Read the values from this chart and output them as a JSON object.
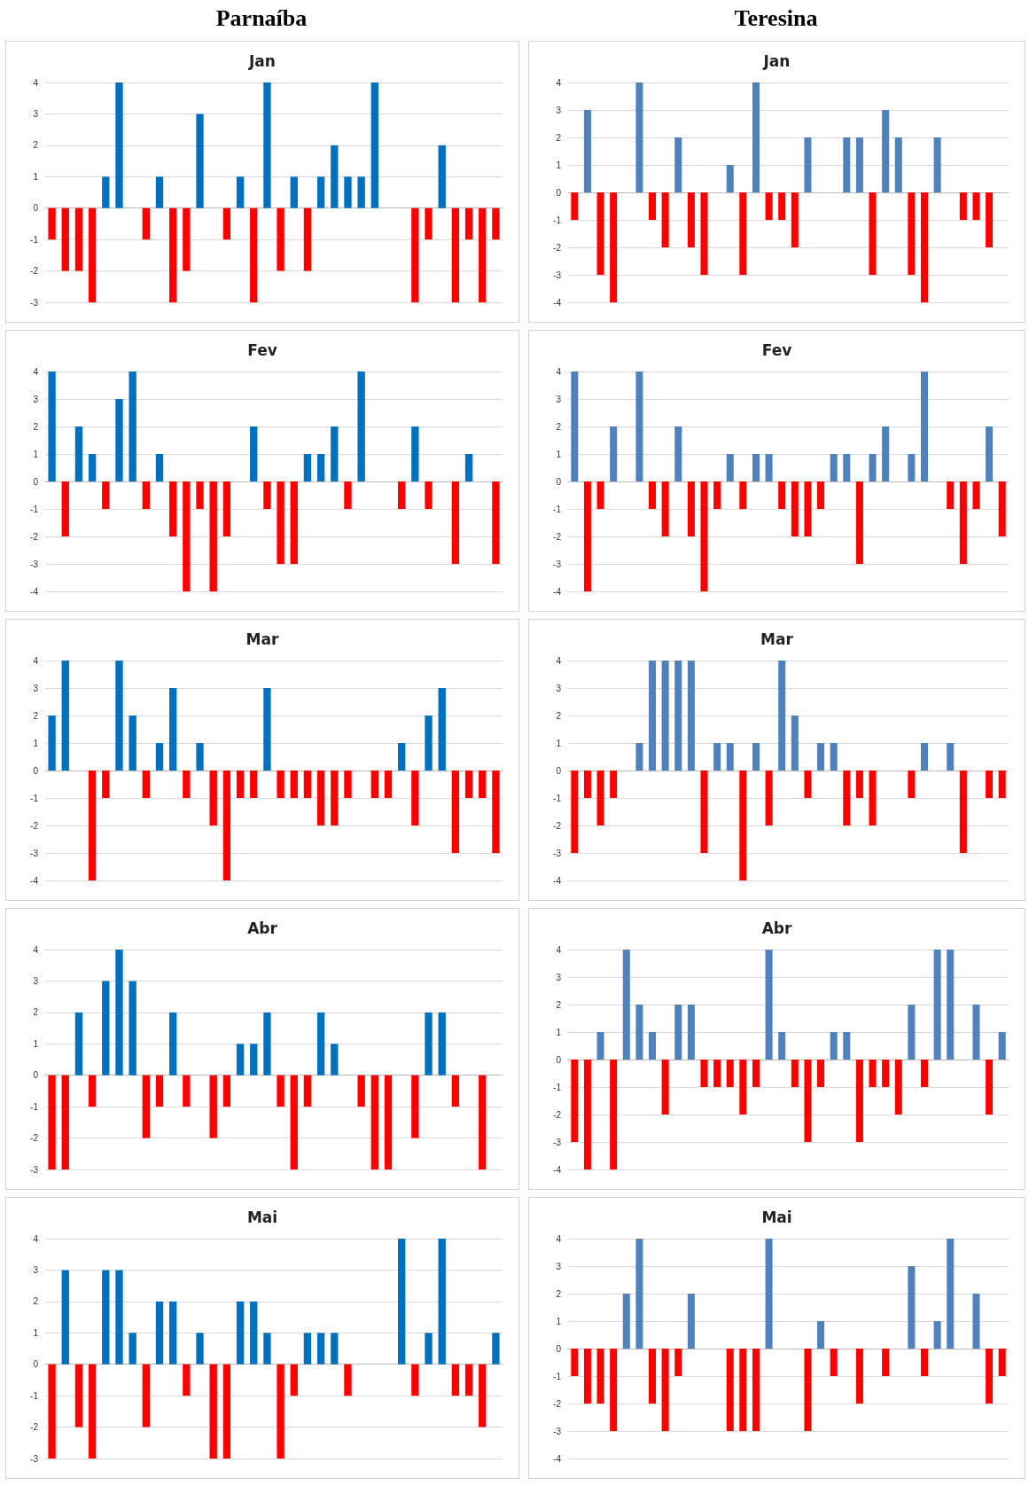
{
  "chart_data": [
    {
      "type": "bar",
      "subtitle": "Parnaíba",
      "title": "Jan",
      "stacked": true,
      "grid": "y",
      "tick_labels": "y",
      "categories": [
        null,
        null,
        null,
        null,
        null,
        null,
        null,
        null,
        null,
        null,
        null,
        null,
        null,
        null,
        null,
        null,
        null,
        null,
        null,
        null,
        null,
        null,
        null,
        null,
        null,
        null,
        null,
        null,
        null,
        null,
        null,
        null,
        null,
        null
      ],
      "ylim": [
        -3,
        4
      ],
      "yticks": [
        -3,
        -2,
        -1,
        0,
        1,
        2,
        3,
        4
      ],
      "series": [
        {
          "color": "#0070c0",
          "values": [
            null,
            null,
            null,
            null,
            1,
            4,
            null,
            null,
            1,
            null,
            null,
            3,
            null,
            null,
            1,
            null,
            4,
            null,
            1,
            null,
            1,
            2,
            1,
            1,
            4,
            null,
            null,
            null,
            null,
            2,
            null,
            null,
            null,
            null
          ]
        },
        {
          "color": "#ff0000",
          "values": [
            -1,
            -2,
            -2,
            -3,
            null,
            null,
            null,
            -1,
            null,
            -3,
            -2,
            null,
            null,
            -1,
            null,
            -3,
            null,
            -2,
            null,
            -2,
            null,
            null,
            null,
            null,
            null,
            null,
            null,
            -3,
            -1,
            null,
            -3,
            -1,
            -3,
            -1
          ]
        }
      ]
    },
    {
      "type": "bar",
      "subtitle": "Teresina",
      "title": "Jan",
      "stacked": true,
      "grid": "y",
      "tick_labels": "y",
      "categories": [
        null,
        null,
        null,
        null,
        null,
        null,
        null,
        null,
        null,
        null,
        null,
        null,
        null,
        null,
        null,
        null,
        null,
        null,
        null,
        null,
        null,
        null,
        null,
        null,
        null,
        null,
        null,
        null,
        null,
        null,
        null,
        null,
        null,
        null
      ],
      "ylim": [
        -4,
        4
      ],
      "yticks": [
        -4,
        -3,
        -2,
        -1,
        0,
        1,
        2,
        3,
        4
      ],
      "series": [
        {
          "color": "#4f81bd",
          "values": [
            null,
            3,
            null,
            null,
            null,
            4,
            null,
            null,
            2,
            null,
            null,
            null,
            1,
            null,
            4,
            null,
            null,
            null,
            2,
            null,
            null,
            2,
            2,
            null,
            3,
            2,
            null,
            null,
            2,
            null,
            null,
            null,
            null,
            null
          ]
        },
        {
          "color": "#ff0000",
          "values": [
            -1,
            null,
            -3,
            -4,
            null,
            null,
            -1,
            -2,
            null,
            -2,
            -3,
            null,
            null,
            -3,
            null,
            -1,
            -1,
            -2,
            null,
            null,
            null,
            null,
            null,
            -3,
            null,
            null,
            -3,
            -4,
            null,
            null,
            -1,
            -1,
            -2,
            null
          ]
        }
      ]
    },
    {
      "type": "bar",
      "title": "Fev",
      "stacked": true,
      "grid": "y",
      "tick_labels": "y",
      "categories": [
        null,
        null,
        null,
        null,
        null,
        null,
        null,
        null,
        null,
        null,
        null,
        null,
        null,
        null,
        null,
        null,
        null,
        null,
        null,
        null,
        null,
        null,
        null,
        null,
        null,
        null,
        null,
        null,
        null,
        null,
        null,
        null,
        null,
        null
      ],
      "ylim": [
        -4,
        4
      ],
      "yticks": [
        -4,
        -3,
        -2,
        -1,
        0,
        1,
        2,
        3,
        4
      ],
      "series": [
        {
          "color": "#0070c0",
          "values": [
            4,
            null,
            2,
            1,
            null,
            3,
            4,
            null,
            1,
            null,
            null,
            null,
            null,
            null,
            null,
            2,
            null,
            null,
            null,
            1,
            1,
            2,
            null,
            4,
            null,
            null,
            null,
            2,
            null,
            null,
            null,
            1,
            null,
            null
          ]
        },
        {
          "color": "#ff0000",
          "values": [
            null,
            -2,
            null,
            null,
            -1,
            null,
            null,
            -1,
            null,
            -2,
            -4,
            -1,
            -4,
            -2,
            null,
            null,
            -1,
            -3,
            -3,
            null,
            null,
            null,
            -1,
            null,
            null,
            null,
            -1,
            null,
            -1,
            null,
            -3,
            null,
            null,
            -3
          ]
        }
      ]
    },
    {
      "type": "bar",
      "title": "Fev",
      "stacked": true,
      "grid": "y",
      "tick_labels": "y",
      "categories": [
        null,
        null,
        null,
        null,
        null,
        null,
        null,
        null,
        null,
        null,
        null,
        null,
        null,
        null,
        null,
        null,
        null,
        null,
        null,
        null,
        null,
        null,
        null,
        null,
        null,
        null,
        null,
        null,
        null,
        null,
        null,
        null,
        null,
        null
      ],
      "ylim": [
        -4,
        4
      ],
      "yticks": [
        -4,
        -3,
        -2,
        -1,
        0,
        1,
        2,
        3,
        4
      ],
      "series": [
        {
          "color": "#4f81bd",
          "values": [
            4,
            null,
            null,
            2,
            null,
            4,
            null,
            null,
            2,
            null,
            null,
            null,
            1,
            null,
            1,
            1,
            null,
            null,
            null,
            null,
            1,
            1,
            null,
            1,
            2,
            null,
            1,
            4,
            null,
            null,
            null,
            null,
            2,
            null
          ]
        },
        {
          "color": "#ff0000",
          "values": [
            null,
            -4,
            -1,
            null,
            null,
            null,
            -1,
            -2,
            null,
            -2,
            -4,
            -1,
            null,
            -1,
            null,
            null,
            -1,
            -2,
            -2,
            -1,
            null,
            null,
            -3,
            null,
            null,
            null,
            null,
            null,
            null,
            -1,
            -3,
            -1,
            null,
            -2
          ]
        }
      ]
    },
    {
      "type": "bar",
      "title": "Mar",
      "stacked": true,
      "grid": "y",
      "tick_labels": "y",
      "categories": [
        null,
        null,
        null,
        null,
        null,
        null,
        null,
        null,
        null,
        null,
        null,
        null,
        null,
        null,
        null,
        null,
        null,
        null,
        null,
        null,
        null,
        null,
        null,
        null,
        null,
        null,
        null,
        null,
        null,
        null,
        null,
        null,
        null,
        null
      ],
      "ylim": [
        -4,
        4
      ],
      "yticks": [
        -4,
        -3,
        -2,
        -1,
        0,
        1,
        2,
        3,
        4
      ],
      "series": [
        {
          "color": "#0070c0",
          "values": [
            2,
            4,
            null,
            null,
            null,
            4,
            2,
            null,
            1,
            3,
            null,
            1,
            null,
            null,
            null,
            null,
            3,
            null,
            null,
            null,
            null,
            null,
            null,
            null,
            null,
            null,
            1,
            null,
            2,
            3,
            null,
            null,
            null,
            null
          ]
        },
        {
          "color": "#ff0000",
          "values": [
            null,
            null,
            null,
            -4,
            -1,
            null,
            null,
            -1,
            null,
            null,
            -1,
            null,
            -2,
            -4,
            -1,
            -1,
            null,
            -1,
            -1,
            -1,
            -2,
            -2,
            -1,
            null,
            -1,
            -1,
            null,
            -2,
            null,
            null,
            -3,
            -1,
            -1,
            -3
          ]
        }
      ]
    },
    {
      "type": "bar",
      "title": "Mar",
      "stacked": true,
      "grid": "y",
      "tick_labels": "y",
      "categories": [
        null,
        null,
        null,
        null,
        null,
        null,
        null,
        null,
        null,
        null,
        null,
        null,
        null,
        null,
        null,
        null,
        null,
        null,
        null,
        null,
        null,
        null,
        null,
        null,
        null,
        null,
        null,
        null,
        null,
        null,
        null,
        null,
        null,
        null
      ],
      "ylim": [
        -4,
        4
      ],
      "yticks": [
        -4,
        -3,
        -2,
        -1,
        0,
        1,
        2,
        3,
        4
      ],
      "series": [
        {
          "color": "#4f81bd",
          "values": [
            null,
            null,
            null,
            null,
            null,
            1,
            4,
            4,
            4,
            4,
            null,
            1,
            1,
            null,
            1,
            null,
            4,
            2,
            null,
            1,
            1,
            null,
            null,
            null,
            null,
            null,
            null,
            1,
            null,
            1,
            null,
            null,
            null,
            null
          ]
        },
        {
          "color": "#ff0000",
          "values": [
            -3,
            -1,
            -2,
            -1,
            null,
            null,
            null,
            null,
            null,
            null,
            -3,
            null,
            null,
            -4,
            null,
            -2,
            null,
            null,
            -1,
            null,
            null,
            -2,
            -1,
            -2,
            null,
            null,
            -1,
            null,
            null,
            null,
            -3,
            null,
            -1,
            -1
          ]
        }
      ]
    },
    {
      "type": "bar",
      "title": "Abr",
      "stacked": true,
      "grid": "y",
      "tick_labels": "y",
      "categories": [
        null,
        null,
        null,
        null,
        null,
        null,
        null,
        null,
        null,
        null,
        null,
        null,
        null,
        null,
        null,
        null,
        null,
        null,
        null,
        null,
        null,
        null,
        null,
        null,
        null,
        null,
        null,
        null,
        null,
        null,
        null,
        null,
        null,
        null
      ],
      "ylim": [
        -3,
        4
      ],
      "yticks": [
        -3,
        -2,
        -1,
        0,
        1,
        2,
        3,
        4
      ],
      "series": [
        {
          "color": "#0070c0",
          "values": [
            null,
            null,
            2,
            null,
            3,
            4,
            3,
            null,
            null,
            2,
            null,
            null,
            null,
            null,
            1,
            1,
            2,
            null,
            null,
            null,
            2,
            1,
            null,
            null,
            null,
            null,
            null,
            null,
            2,
            2,
            null,
            null,
            null,
            null
          ]
        },
        {
          "color": "#ff0000",
          "values": [
            -3,
            -3,
            null,
            -1,
            null,
            null,
            null,
            -2,
            -1,
            null,
            -1,
            null,
            -2,
            -1,
            null,
            null,
            null,
            -1,
            -3,
            -1,
            null,
            null,
            null,
            -1,
            -3,
            -3,
            null,
            -2,
            null,
            null,
            -1,
            null,
            -3,
            null
          ]
        }
      ]
    },
    {
      "type": "bar",
      "title": "Abr",
      "stacked": true,
      "grid": "y",
      "tick_labels": "y",
      "categories": [
        null,
        null,
        null,
        null,
        null,
        null,
        null,
        null,
        null,
        null,
        null,
        null,
        null,
        null,
        null,
        null,
        null,
        null,
        null,
        null,
        null,
        null,
        null,
        null,
        null,
        null,
        null,
        null,
        null,
        null,
        null,
        null,
        null,
        null
      ],
      "ylim": [
        -4,
        4
      ],
      "yticks": [
        -4,
        -3,
        -2,
        -1,
        0,
        1,
        2,
        3,
        4
      ],
      "series": [
        {
          "color": "#4f81bd",
          "values": [
            null,
            null,
            1,
            null,
            4,
            2,
            1,
            null,
            2,
            2,
            null,
            null,
            null,
            null,
            null,
            4,
            1,
            null,
            null,
            null,
            1,
            1,
            null,
            null,
            null,
            null,
            2,
            null,
            4,
            4,
            null,
            2,
            null,
            1
          ]
        },
        {
          "color": "#ff0000",
          "values": [
            -3,
            -4,
            null,
            -4,
            null,
            null,
            null,
            -2,
            null,
            null,
            -1,
            -1,
            -1,
            -2,
            -1,
            null,
            null,
            -1,
            -3,
            -1,
            null,
            null,
            -3,
            -1,
            -1,
            -2,
            null,
            -1,
            null,
            null,
            null,
            null,
            -2,
            null
          ]
        }
      ]
    },
    {
      "type": "bar",
      "title": "Mai",
      "stacked": true,
      "grid": "y",
      "tick_labels": "y",
      "categories": [
        null,
        null,
        null,
        null,
        null,
        null,
        null,
        null,
        null,
        null,
        null,
        null,
        null,
        null,
        null,
        null,
        null,
        null,
        null,
        null,
        null,
        null,
        null,
        null,
        null,
        null,
        null,
        null,
        null,
        null,
        null,
        null,
        null,
        null
      ],
      "ylim": [
        -3,
        4
      ],
      "yticks": [
        -3,
        -2,
        -1,
        0,
        1,
        2,
        3,
        4
      ],
      "series": [
        {
          "color": "#0070c0",
          "values": [
            null,
            3,
            null,
            null,
            3,
            3,
            1,
            null,
            2,
            2,
            null,
            1,
            null,
            null,
            2,
            2,
            1,
            null,
            null,
            1,
            1,
            1,
            null,
            null,
            null,
            null,
            4,
            null,
            1,
            4,
            null,
            null,
            null,
            1
          ]
        },
        {
          "color": "#ff0000",
          "values": [
            -3,
            null,
            -2,
            -3,
            null,
            null,
            null,
            -2,
            null,
            null,
            -1,
            null,
            -3,
            -3,
            null,
            null,
            null,
            -3,
            -1,
            null,
            null,
            null,
            -1,
            null,
            null,
            null,
            null,
            -1,
            null,
            null,
            -1,
            -1,
            -2,
            null
          ]
        }
      ]
    },
    {
      "type": "bar",
      "title": "Mai",
      "stacked": true,
      "grid": "y",
      "tick_labels": "y",
      "categories": [
        null,
        null,
        null,
        null,
        null,
        null,
        null,
        null,
        null,
        null,
        null,
        null,
        null,
        null,
        null,
        null,
        null,
        null,
        null,
        null,
        null,
        null,
        null,
        null,
        null,
        null,
        null,
        null,
        null,
        null,
        null,
        null,
        null,
        null
      ],
      "ylim": [
        -4,
        4
      ],
      "yticks": [
        -4,
        -3,
        -2,
        -1,
        0,
        1,
        2,
        3,
        4
      ],
      "series": [
        {
          "color": "#4f81bd",
          "values": [
            null,
            null,
            null,
            null,
            2,
            4,
            null,
            null,
            null,
            2,
            null,
            null,
            null,
            null,
            null,
            4,
            null,
            null,
            null,
            1,
            null,
            null,
            null,
            null,
            null,
            null,
            3,
            null,
            1,
            4,
            null,
            2,
            null,
            null
          ]
        },
        {
          "color": "#ff0000",
          "values": [
            -1,
            -2,
            -2,
            -3,
            null,
            null,
            -2,
            -3,
            -1,
            null,
            null,
            null,
            -3,
            -3,
            -3,
            null,
            null,
            null,
            -3,
            null,
            -1,
            null,
            -2,
            null,
            -1,
            null,
            null,
            -1,
            null,
            null,
            null,
            null,
            -2,
            -1
          ]
        }
      ]
    }
  ]
}
